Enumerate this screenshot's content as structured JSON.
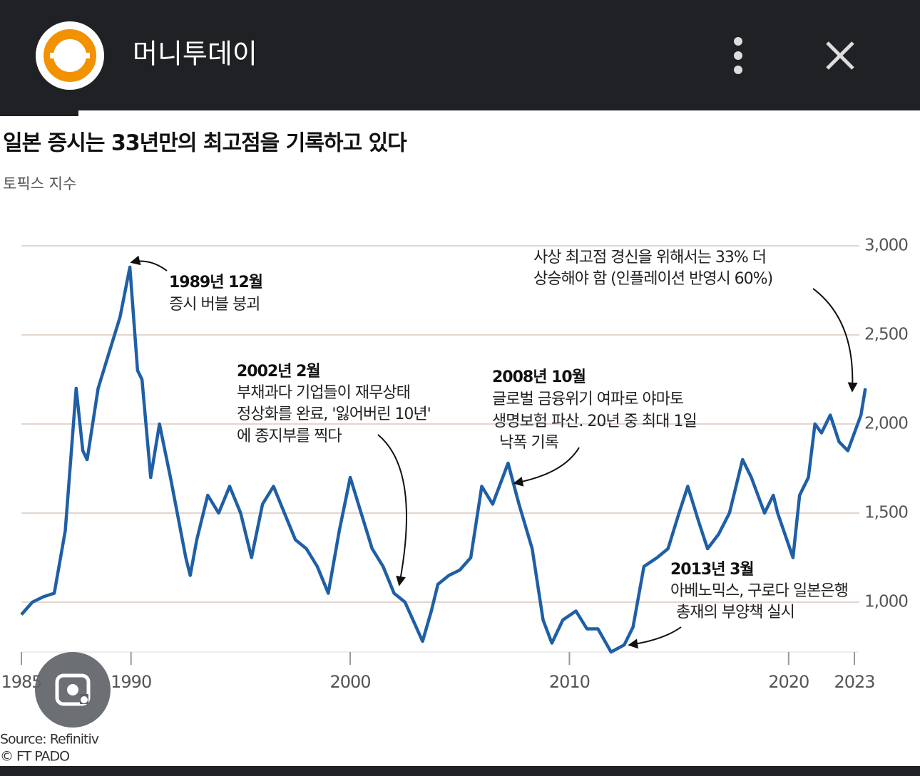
{
  "app_bar": {
    "title": "머니투데이"
  },
  "chart_data": {
    "type": "line",
    "title": "일본 증시는 33년만의 최고점을 기록하고 있다",
    "subtitle": "토픽스 지수",
    "color": "#1f5fa6",
    "x": [
      1985.0,
      1985.5,
      1986.0,
      1986.5,
      1987.0,
      1987.5,
      1987.8,
      1988.0,
      1988.5,
      1989.0,
      1989.5,
      1989.95,
      1990.3,
      1990.5,
      1990.9,
      1991.3,
      1991.8,
      1992.5,
      1992.7,
      1993.0,
      1993.5,
      1994.0,
      1994.5,
      1995.0,
      1995.5,
      1996.0,
      1996.5,
      1997.0,
      1997.5,
      1998.0,
      1998.5,
      1999.0,
      1999.5,
      2000.0,
      2000.5,
      2001.0,
      2001.5,
      2002.0,
      2002.5,
      2003.3,
      2003.7,
      2004.0,
      2004.5,
      2005.0,
      2005.5,
      2006.0,
      2006.5,
      2007.2,
      2007.7,
      2008.3,
      2008.8,
      2009.2,
      2009.7,
      2010.3,
      2010.8,
      2011.3,
      2011.9,
      2012.5,
      2012.9,
      2013.4,
      2014.0,
      2014.5,
      2015.0,
      2015.4,
      2015.9,
      2016.3,
      2016.8,
      2017.3,
      2017.9,
      2018.3,
      2018.9,
      2019.3,
      2019.5,
      2020.2,
      2020.5,
      2020.9,
      2021.2,
      2021.5,
      2021.9,
      2022.3,
      2022.7,
      2023.0,
      2023.3,
      2023.5
    ],
    "values": [
      930,
      1000,
      1030,
      1050,
      1400,
      2200,
      1850,
      1800,
      2200,
      2400,
      2600,
      2880,
      2300,
      2250,
      1700,
      2000,
      1700,
      1250,
      1150,
      1350,
      1600,
      1500,
      1650,
      1500,
      1250,
      1550,
      1650,
      1500,
      1350,
      1300,
      1200,
      1050,
      1400,
      1700,
      1500,
      1300,
      1200,
      1050,
      1000,
      780,
      950,
      1100,
      1150,
      1180,
      1250,
      1650,
      1550,
      1780,
      1550,
      1300,
      900,
      770,
      900,
      950,
      850,
      850,
      720,
      760,
      860,
      1200,
      1250,
      1300,
      1500,
      1650,
      1450,
      1300,
      1380,
      1500,
      1800,
      1700,
      1500,
      1600,
      1500,
      1250,
      1600,
      1700,
      2000,
      1950,
      2050,
      1900,
      1850,
      1950,
      2050,
      2200
    ],
    "xlim": [
      1985,
      2023
    ],
    "xticks": [
      1985,
      1990,
      2000,
      2010,
      2020,
      2023
    ],
    "ylim": [
      700,
      3000
    ],
    "yticks": [
      {
        "value": 1000,
        "label": "1,000"
      },
      {
        "value": 1500,
        "label": "1,500"
      },
      {
        "value": 2000,
        "label": "2,000"
      },
      {
        "value": 2500,
        "label": "2,500"
      },
      {
        "value": 3000,
        "label": "3,000"
      }
    ],
    "grid": true,
    "annotations": [
      {
        "title": "1989년 12월",
        "lines": [
          "증시 버블 붕괴"
        ]
      },
      {
        "title": "2002년 2월",
        "lines": [
          "부채과다 기업들이 재무상태",
          "정상화를 완료, '잃어버린 10년'",
          "에 종지부를 찍다"
        ]
      },
      {
        "title": "2008년 10월",
        "lines": [
          "글로벌 금융위기 여파로 야마토",
          "생명보험 파산. 20년 중 최대 1일",
          "낙폭 기록"
        ]
      },
      {
        "lines": [
          "사상 최고점 경신을 위해서는 33% 더",
          "상승해야 함 (인플레이션 반영시 60%)"
        ]
      },
      {
        "title": "2013년 3월",
        "lines": [
          "아베노믹스, 구로다 일본은행",
          "총재의 부양책 실시"
        ]
      }
    ],
    "source": "Source: Refinitiv",
    "credit": "© FT PADO"
  }
}
